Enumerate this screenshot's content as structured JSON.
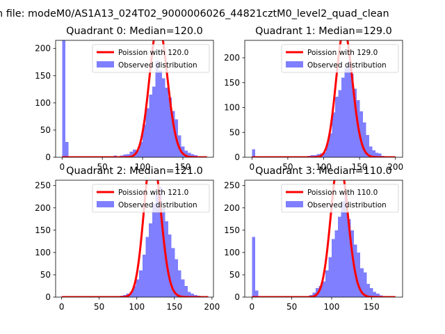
{
  "figure": {
    "suptitle": "n file: modeM0/AS1A13_024T02_9000006026_44821cztM0_level2_quad_clean"
  },
  "colors": {
    "bar": "#7f7fff",
    "line": "#ff0000",
    "legend_border": "#cccccc"
  },
  "chart_data": [
    {
      "type": "bar",
      "title": "Quadrant 0: Median=120.0",
      "legend": [
        "Poission with 120.0",
        "Observed distribution"
      ],
      "legend_placement": "upper-right",
      "xlim": [
        -8,
        188
      ],
      "ylim": [
        0,
        215
      ],
      "xticks": [
        0,
        50,
        100,
        150
      ],
      "yticks": [
        0,
        50,
        100,
        150,
        200
      ],
      "bin_start": 0,
      "bin_width": 4,
      "hist": [
        215,
        28,
        0,
        0,
        0,
        0,
        0,
        0,
        0,
        0,
        0,
        0,
        0,
        0,
        0,
        0,
        3,
        2,
        3,
        5,
        6,
        10,
        14,
        13,
        28,
        60,
        90,
        115,
        130,
        178,
        160,
        145,
        128,
        110,
        85,
        70,
        40,
        20,
        12,
        8,
        6,
        4,
        2,
        1,
        1
      ],
      "poisson_mean": 120.0,
      "curve_x": [
        0,
        180
      ]
    },
    {
      "type": "bar",
      "title": "Quadrant 1: Median=129.0",
      "legend": [
        "Poission with 129.0",
        "Observed distribution"
      ],
      "legend_placement": "upper-right",
      "xlim": [
        -10,
        210
      ],
      "ylim": [
        0,
        235
      ],
      "xticks": [
        0,
        50,
        100,
        150,
        200
      ],
      "yticks": [
        0,
        50,
        100,
        150,
        200
      ],
      "bin_start": 0,
      "bin_width": 4.3,
      "hist": [
        16,
        0,
        0,
        0,
        0,
        0,
        0,
        0,
        0,
        0,
        0,
        0,
        0,
        0,
        0,
        0,
        0,
        2,
        3,
        4,
        4,
        6,
        8,
        10,
        28,
        48,
        90,
        122,
        135,
        160,
        180,
        190,
        168,
        138,
        115,
        92,
        70,
        45,
        22,
        14,
        9,
        8,
        3,
        2,
        1
      ],
      "poisson_mean": 129.0,
      "curve_x": [
        0,
        200
      ]
    },
    {
      "type": "bar",
      "title": "Quadrant 2: Median=121.0",
      "legend": [
        "Poission with 121.0",
        "Observed distribution"
      ],
      "legend_placement": "upper-right",
      "xlim": [
        -8,
        202
      ],
      "ylim": [
        0,
        262
      ],
      "xticks": [
        0,
        50,
        100,
        150,
        200
      ],
      "yticks": [
        0,
        50,
        100,
        150,
        200,
        250
      ],
      "bin_start": 0,
      "bin_width": 4.3,
      "hist": [
        0,
        0,
        0,
        0,
        0,
        0,
        0,
        0,
        0,
        0,
        0,
        0,
        0,
        0,
        0,
        0,
        0,
        2,
        3,
        5,
        8,
        12,
        25,
        40,
        60,
        95,
        135,
        165,
        210,
        230,
        248,
        200,
        170,
        140,
        110,
        85,
        60,
        40,
        25,
        12,
        8,
        5,
        3,
        1,
        1
      ],
      "poisson_mean": 121.0,
      "curve_x": [
        0,
        195
      ]
    },
    {
      "type": "bar",
      "title": "Quadrant 3: Median=110.0",
      "legend": [
        "Poission with 110.0",
        "Observed distribution"
      ],
      "legend_placement": "upper-right",
      "xlim": [
        -9,
        189
      ],
      "ylim": [
        0,
        262
      ],
      "xticks": [
        0,
        50,
        100,
        150
      ],
      "yticks": [
        0,
        50,
        100,
        150,
        200,
        250
      ],
      "bin_start": 0,
      "bin_width": 4,
      "hist": [
        135,
        15,
        0,
        0,
        0,
        0,
        0,
        0,
        0,
        0,
        0,
        0,
        0,
        0,
        0,
        0,
        0,
        2,
        5,
        10,
        20,
        25,
        35,
        60,
        90,
        130,
        150,
        180,
        215,
        230,
        175,
        150,
        118,
        100,
        65,
        55,
        30,
        20,
        12,
        8,
        4,
        2,
        1,
        1,
        0
      ],
      "poisson_mean": 110.0,
      "curve_x": [
        0,
        180
      ]
    }
  ]
}
